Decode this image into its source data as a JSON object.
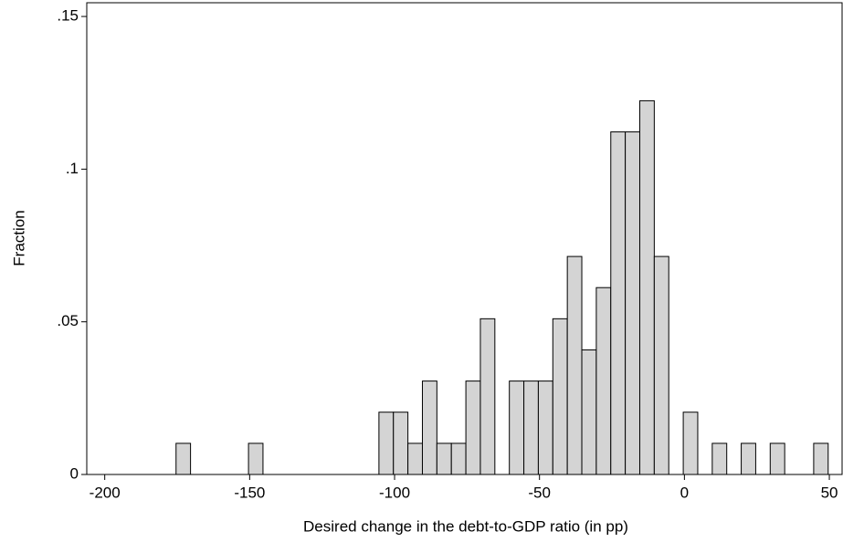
{
  "chart_data": {
    "type": "histogram",
    "x_label": "Desired change in the debt-to-GDP ratio (in pp)",
    "y_label": "Fraction",
    "bins": [
      -175.4,
      -170.4,
      -165.4,
      -160.4,
      -155.4,
      -150.4,
      -145.4,
      -140.4,
      -135.4,
      -130.4,
      -125.4,
      -120.4,
      -115.4,
      -110.4,
      -105.4,
      -100.4,
      -95.4,
      -90.4,
      -85.4,
      -80.4,
      -75.4,
      -70.4,
      -65.4,
      -60.4,
      -55.4,
      -50.4,
      -45.4,
      -40.4,
      -35.4,
      -30.4,
      -25.4,
      -20.4,
      -15.4,
      -10.4,
      -5.4,
      -0.4,
      4.6,
      9.6,
      14.6,
      19.6,
      24.6,
      29.6,
      34.6,
      39.6,
      44.6,
      49.6
    ],
    "values": [
      0.0102,
      0,
      0,
      0,
      0,
      0.0102,
      0,
      0,
      0,
      0,
      0,
      0,
      0,
      0,
      0.0204,
      0.0204,
      0.0102,
      0.0306,
      0.0102,
      0.0102,
      0.0306,
      0.051,
      0,
      0.0306,
      0.0306,
      0.0306,
      0.051,
      0.0714,
      0.0408,
      0.0612,
      0.1122,
      0.1122,
      0.1224,
      0.0714,
      0,
      0.0204,
      0,
      0.0102,
      0,
      0.0102,
      0,
      0.0102,
      0,
      0,
      0.0102
    ],
    "color": "#d4d4d4",
    "edge_color": "#000000",
    "xlim": [
      -206.2,
      54.4
    ],
    "ylim": [
      0,
      0.1545
    ],
    "xticks": [
      -200,
      -150,
      -100,
      -50,
      0,
      50
    ],
    "yticks": [
      0,
      {
        "value": 0.05,
        "label": ".05"
      },
      {
        "value": 0.1,
        "label": ".1"
      },
      {
        "value": 0.15,
        "label": ".15"
      }
    ]
  }
}
